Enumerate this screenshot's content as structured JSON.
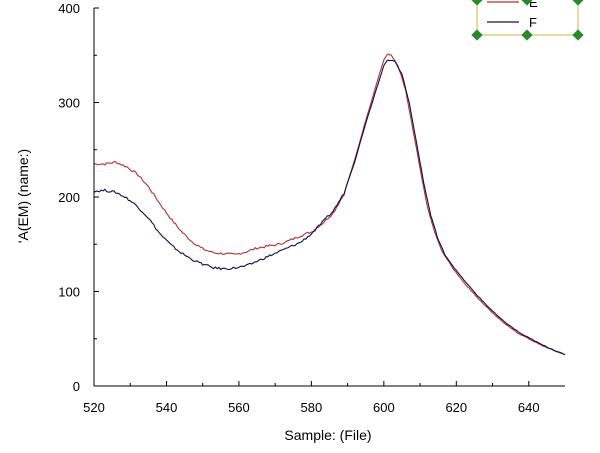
{
  "chart_data": {
    "type": "line",
    "xlabel": "Sample: (File)",
    "ylabel": "'A(EM) (name:)",
    "xlim": [
      520,
      650
    ],
    "ylim": [
      0,
      400
    ],
    "x_ticks": [
      520,
      540,
      560,
      580,
      600,
      620,
      640
    ],
    "y_ticks": [
      0,
      100,
      200,
      300,
      400
    ],
    "grid": false,
    "legend_position": "top-right",
    "series": [
      {
        "name": "E",
        "color": "#b03030",
        "points": [
          [
            520,
            235
          ],
          [
            523,
            235
          ],
          [
            526,
            237
          ],
          [
            529,
            232
          ],
          [
            532,
            224
          ],
          [
            535,
            211
          ],
          [
            538,
            194
          ],
          [
            541,
            178
          ],
          [
            544,
            164
          ],
          [
            547,
            153
          ],
          [
            550,
            145
          ],
          [
            553,
            141
          ],
          [
            556,
            140
          ],
          [
            559,
            139
          ],
          [
            562,
            142
          ],
          [
            565,
            146
          ],
          [
            568,
            148
          ],
          [
            571,
            150
          ],
          [
            574,
            154
          ],
          [
            577,
            159
          ],
          [
            580,
            163
          ],
          [
            583,
            172
          ],
          [
            586,
            183
          ],
          [
            589,
            203
          ],
          [
            592,
            240
          ],
          [
            595,
            281
          ],
          [
            598,
            320
          ],
          [
            600,
            345
          ],
          [
            601,
            351
          ],
          [
            602,
            350
          ],
          [
            604,
            338
          ],
          [
            606,
            313
          ],
          [
            608,
            272
          ],
          [
            610,
            230
          ],
          [
            612,
            190
          ],
          [
            614,
            163
          ],
          [
            616,
            143
          ],
          [
            619,
            125
          ],
          [
            622,
            110
          ],
          [
            625,
            97
          ],
          [
            628,
            85
          ],
          [
            631,
            74
          ],
          [
            634,
            64
          ],
          [
            637,
            56
          ],
          [
            640,
            50
          ],
          [
            643,
            44
          ],
          [
            646,
            39
          ],
          [
            650,
            33
          ]
        ]
      },
      {
        "name": "F",
        "color": "#10104a",
        "points": [
          [
            520,
            206
          ],
          [
            523,
            207
          ],
          [
            526,
            205
          ],
          [
            529,
            199
          ],
          [
            532,
            190
          ],
          [
            535,
            178
          ],
          [
            538,
            162
          ],
          [
            541,
            150
          ],
          [
            544,
            141
          ],
          [
            547,
            134
          ],
          [
            550,
            129
          ],
          [
            553,
            125
          ],
          [
            556,
            124
          ],
          [
            559,
            125
          ],
          [
            562,
            127
          ],
          [
            565,
            132
          ],
          [
            568,
            137
          ],
          [
            571,
            142
          ],
          [
            574,
            147
          ],
          [
            577,
            152
          ],
          [
            580,
            161
          ],
          [
            583,
            173
          ],
          [
            586,
            185
          ],
          [
            589,
            204
          ],
          [
            592,
            238
          ],
          [
            595,
            278
          ],
          [
            598,
            315
          ],
          [
            600,
            339
          ],
          [
            601,
            345
          ],
          [
            603,
            344
          ],
          [
            605,
            330
          ],
          [
            607,
            300
          ],
          [
            609,
            258
          ],
          [
            611,
            215
          ],
          [
            613,
            180
          ],
          [
            615,
            155
          ],
          [
            617,
            138
          ],
          [
            620,
            122
          ],
          [
            623,
            108
          ],
          [
            626,
            95
          ],
          [
            629,
            83
          ],
          [
            632,
            72
          ],
          [
            635,
            63
          ],
          [
            638,
            55
          ],
          [
            641,
            49
          ],
          [
            644,
            43
          ],
          [
            647,
            38
          ],
          [
            650,
            33
          ]
        ]
      }
    ]
  }
}
